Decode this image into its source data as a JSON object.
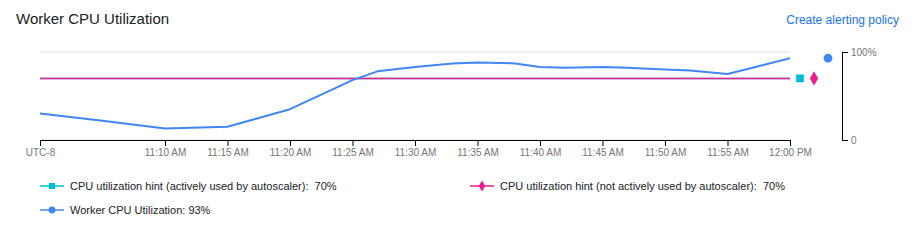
{
  "chart_data": {
    "type": "line",
    "title": "Worker CPU Utilization",
    "annotations": [
      "Create alerting policy"
    ],
    "xlim": [
      0,
      60
    ],
    "xticks": [
      {
        "value": 0,
        "label": "UTC-8"
      },
      {
        "value": 10,
        "label": "11:10 AM"
      },
      {
        "value": 15,
        "label": "11:15 AM"
      },
      {
        "value": 20,
        "label": "11:20 AM"
      },
      {
        "value": 25,
        "label": "11:25 AM"
      },
      {
        "value": 30,
        "label": "11:30 AM"
      },
      {
        "value": 35,
        "label": "11:35 AM"
      },
      {
        "value": 40,
        "label": "11:40 AM"
      },
      {
        "value": 45,
        "label": "11:45 AM"
      },
      {
        "value": 50,
        "label": "11:50 AM"
      },
      {
        "value": 55,
        "label": "11:55 AM"
      },
      {
        "value": 60,
        "label": "12:00 PM"
      }
    ],
    "ylim": [
      0,
      100
    ],
    "yticks": [
      0,
      {
        "value": 100,
        "label": "100%"
      }
    ],
    "grid": true,
    "legend": "bottom",
    "series": [
      {
        "name": "CPU utilization hint (actively used by autoscaler):  70%",
        "color": "#00bcd4",
        "marker": "square",
        "line_style": "solid",
        "x": [
          0,
          60
        ],
        "values": [
          70,
          70
        ]
      },
      {
        "name": "CPU utilization hint (not actively used by autoscaler):  70%",
        "color": "#e91e8c",
        "marker": "diamond",
        "line_style": "solid",
        "x": [
          0,
          60
        ],
        "values": [
          70,
          70
        ]
      },
      {
        "name": "Worker CPU Utilization: 93%",
        "color": "#4285f4",
        "marker": "circle",
        "line_style": "solid",
        "x": [
          0,
          5,
          10,
          15,
          20,
          25,
          27,
          30,
          33,
          35,
          38,
          40,
          42,
          45,
          47,
          50,
          52,
          55,
          57,
          60
        ],
        "values": [
          30,
          22,
          13,
          15,
          35,
          68,
          78,
          83,
          87,
          88,
          87,
          83,
          82,
          83,
          82,
          80,
          79,
          75,
          82,
          93
        ]
      }
    ]
  }
}
